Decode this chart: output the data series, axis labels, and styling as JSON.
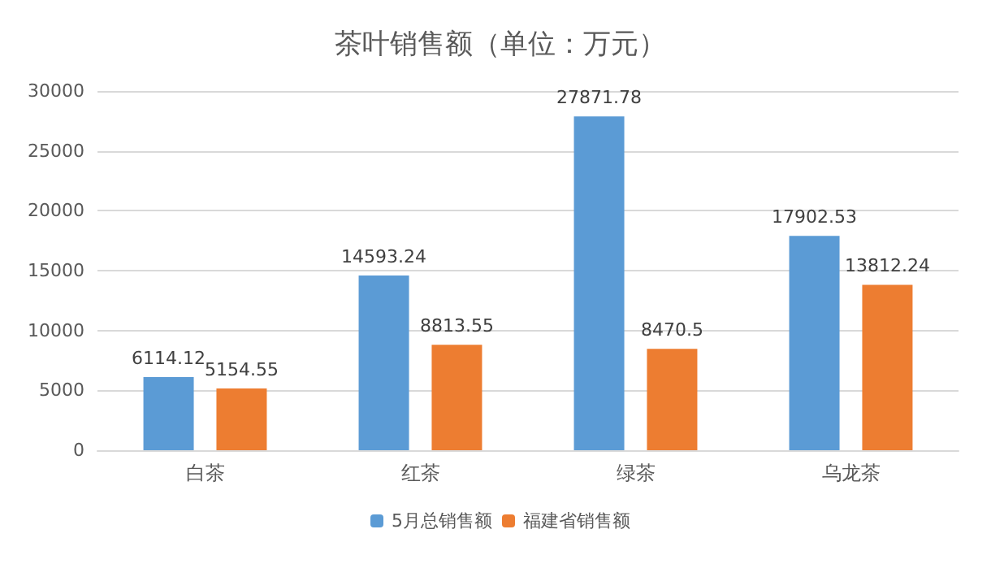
{
  "chart_data": {
    "type": "bar",
    "title": "茶叶销售额（单位：万元）",
    "categories": [
      "白茶",
      "红茶",
      "绿茶",
      "乌龙茶"
    ],
    "series": [
      {
        "name": "5月总销售额",
        "color": "#5b9bd5",
        "values": [
          6114.12,
          14593.24,
          27871.78,
          17902.53
        ]
      },
      {
        "name": "福建省销售额",
        "color": "#ed7d31",
        "values": [
          5154.55,
          8813.55,
          8470.5,
          13812.24
        ]
      }
    ],
    "ylim": [
      0,
      30000
    ],
    "yticks": [
      0,
      5000,
      10000,
      15000,
      20000,
      25000,
      30000
    ],
    "grid": "y",
    "legend": "bottom",
    "data_labels": true
  }
}
